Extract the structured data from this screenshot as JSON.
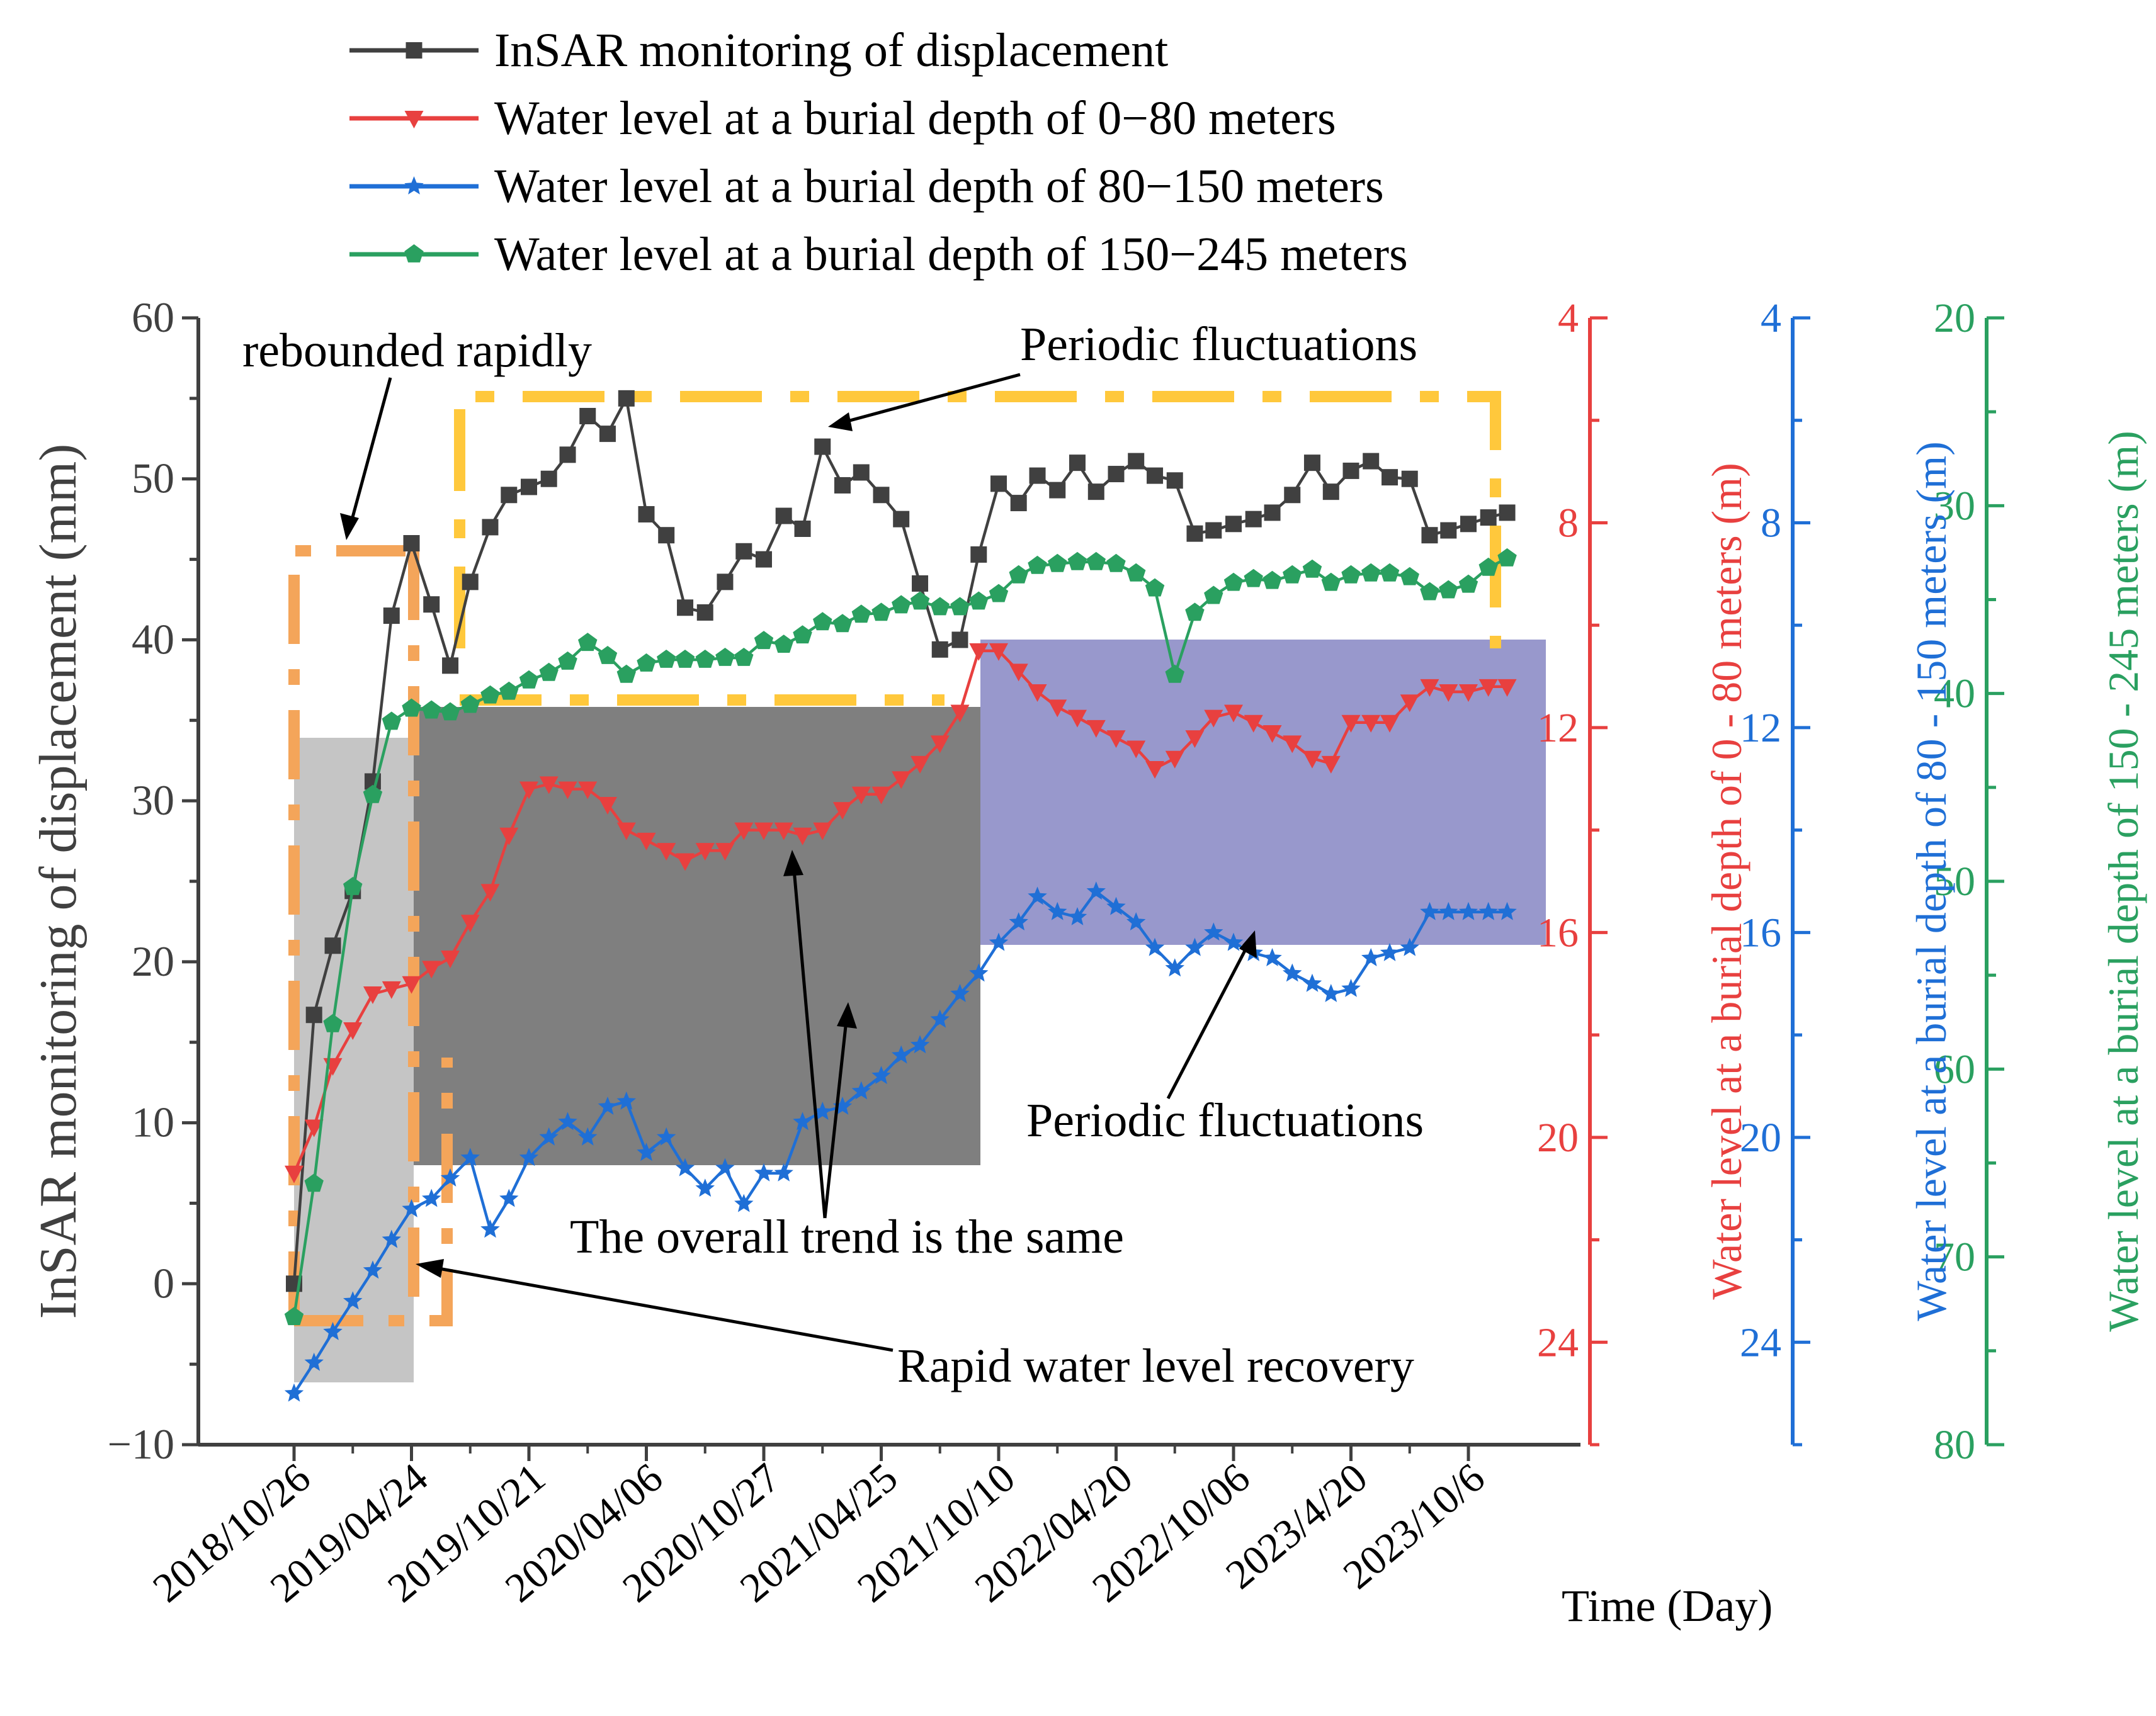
{
  "chart_data": {
    "type": "line",
    "xlabel": "Time (Day)",
    "x_ticks": [
      "2018/10/26",
      "2019/04/24",
      "2019/10/21",
      "2020/04/06",
      "2020/10/27",
      "2021/04/25",
      "2021/10/10",
      "2022/04/20",
      "2022/10/06",
      "2023/4/20",
      "2023/10/6"
    ],
    "x_range": [
      -0.4,
      11.4
    ],
    "axes": {
      "left": {
        "label": "InSAR monitoring of displacement (mm)",
        "range": [
          -10,
          60
        ],
        "ticks": [
          "−10",
          "0",
          "10",
          "20",
          "30",
          "40",
          "50",
          "60"
        ],
        "color": "#404040"
      },
      "right1": {
        "label": "Water level at a burial depth of 0 - 80 meters (m)",
        "range": [
          4,
          26
        ],
        "inverted": true,
        "ticks": [
          "4",
          "8",
          "12",
          "16",
          "20",
          "24"
        ],
        "color": "#E8403F"
      },
      "right2": {
        "label": "Water level at a burial depth of 80 - 150 meters (m)",
        "range": [
          4,
          26
        ],
        "inverted": true,
        "ticks": [
          "4",
          "8",
          "12",
          "16",
          "20",
          "24"
        ],
        "color": "#1F6FD6"
      },
      "right3": {
        "label": "Water level at a burial depth of 150 - 245 meters (m)",
        "range": [
          20,
          80
        ],
        "inverted": true,
        "ticks": [
          "20",
          "30",
          "40",
          "50",
          "60",
          "70",
          "80"
        ],
        "color": "#2AA060"
      }
    },
    "legend": {
      "placement": "top",
      "entries": [
        "InSAR monitoring of displacement",
        "Water level at a burial depth of 0−80 meters",
        "Water level at a burial depth of 80−150 meters",
        "Water level at a burial depth of 150−245 meters"
      ]
    },
    "series": [
      {
        "name": "InSAR monitoring of displacement",
        "axis": "left",
        "color": "#404040",
        "marker": "square",
        "x": [
          0,
          0.17,
          0.33,
          0.5,
          0.67,
          0.83,
          1.0,
          1.17,
          1.33,
          1.5,
          1.67,
          1.83,
          2.0,
          2.17,
          2.33,
          2.5,
          2.67,
          2.83,
          3.0,
          3.17,
          3.33,
          3.5,
          3.67,
          3.83,
          4.0,
          4.17,
          4.33,
          4.5,
          4.67,
          4.83,
          5.0,
          5.17,
          5.33,
          5.5,
          5.67,
          5.83,
          6.0,
          6.17,
          6.33,
          6.5,
          6.67,
          6.83,
          7.0,
          7.17,
          7.33,
          7.5,
          7.67,
          7.83,
          8.0,
          8.17,
          8.33,
          8.5,
          8.67,
          8.83,
          9.0,
          9.17,
          9.33,
          9.5,
          9.67,
          9.83,
          10.0,
          10.17,
          10.33
        ],
        "y": [
          0,
          16.7,
          21,
          24.4,
          31.2,
          41.5,
          46,
          42.2,
          38.4,
          43.6,
          47,
          49,
          49.5,
          50,
          51.5,
          53.9,
          52.8,
          55,
          47.8,
          46.5,
          42,
          41.7,
          43.6,
          45.5,
          45,
          47.7,
          46.9,
          52,
          49.6,
          50.4,
          49,
          47.5,
          43.5,
          39.4,
          40,
          45.3,
          49.7,
          48.5,
          50.2,
          49.3,
          51,
          49.2,
          50.3,
          51.1,
          50.2,
          49.9,
          46.6,
          46.8,
          47.2,
          47.5,
          47.9,
          49,
          51,
          49.2,
          50.5,
          51.1,
          50.1,
          50,
          46.5,
          46.8,
          47.2,
          47.6,
          47.9
        ]
      },
      {
        "name": "Water level at a burial depth of 0−80 meters",
        "axis": "right1",
        "color": "#E8403F",
        "marker": "triangle-down",
        "x": [
          0,
          0.17,
          0.33,
          0.5,
          0.67,
          0.83,
          1.0,
          1.17,
          1.33,
          1.5,
          1.67,
          1.83,
          2.0,
          2.17,
          2.33,
          2.5,
          2.67,
          2.83,
          3.0,
          3.17,
          3.33,
          3.5,
          3.67,
          3.83,
          4.0,
          4.17,
          4.33,
          4.5,
          4.67,
          4.83,
          5.0,
          5.17,
          5.33,
          5.5,
          5.67,
          5.83,
          6.0,
          6.17,
          6.33,
          6.5,
          6.67,
          6.83,
          7.0,
          7.17,
          7.33,
          7.5,
          7.67,
          7.83,
          8.0,
          8.17,
          8.33,
          8.5,
          8.67,
          8.83,
          9.0,
          9.17,
          9.33,
          9.5,
          9.67,
          9.83,
          10.0,
          10.17,
          10.33
        ],
        "y": [
          20.7,
          19.8,
          18.6,
          17.9,
          17.2,
          17.1,
          17.0,
          16.7,
          16.5,
          15.8,
          15.2,
          14.1,
          13.2,
          13.1,
          13.2,
          13.2,
          13.5,
          14.0,
          14.2,
          14.4,
          14.6,
          14.4,
          14.4,
          14.0,
          14.0,
          14.0,
          14.1,
          14.0,
          13.6,
          13.3,
          13.3,
          13.0,
          12.7,
          12.3,
          11.7,
          10.5,
          10.5,
          10.9,
          11.3,
          11.6,
          11.8,
          12.0,
          12.2,
          12.4,
          12.8,
          12.6,
          12.2,
          11.8,
          11.7,
          11.9,
          12.1,
          12.3,
          12.6,
          12.7,
          11.9,
          11.9,
          11.9,
          11.5,
          11.2,
          11.3,
          11.3,
          11.2,
          11.2
        ]
      },
      {
        "name": "Water level at a burial depth of 80−150 meters",
        "axis": "right2",
        "color": "#1F6FD6",
        "marker": "star",
        "x": [
          0,
          0.17,
          0.33,
          0.5,
          0.67,
          0.83,
          1.0,
          1.17,
          1.33,
          1.5,
          1.67,
          1.83,
          2.0,
          2.17,
          2.33,
          2.5,
          2.67,
          2.83,
          3.0,
          3.17,
          3.33,
          3.5,
          3.67,
          3.83,
          4.0,
          4.17,
          4.33,
          4.5,
          4.67,
          4.83,
          5.0,
          5.17,
          5.33,
          5.5,
          5.67,
          5.83,
          6.0,
          6.17,
          6.33,
          6.5,
          6.67,
          6.83,
          7.0,
          7.17,
          7.33,
          7.5,
          7.67,
          7.83,
          8.0,
          8.17,
          8.33,
          8.5,
          8.67,
          8.83,
          9.0,
          9.17,
          9.33,
          9.5,
          9.67,
          9.83,
          10.0,
          10.17,
          10.33
        ],
        "y": [
          25.0,
          24.4,
          23.8,
          23.2,
          22.6,
          22.0,
          21.4,
          21.2,
          20.8,
          20.4,
          21.8,
          21.2,
          20.4,
          20.0,
          19.7,
          20.0,
          19.4,
          19.3,
          20.3,
          20.0,
          20.6,
          21.0,
          20.6,
          21.3,
          20.7,
          20.7,
          19.7,
          19.5,
          19.4,
          19.1,
          18.8,
          18.4,
          18.2,
          17.7,
          17.2,
          16.8,
          16.2,
          15.8,
          15.3,
          15.6,
          15.7,
          15.2,
          15.5,
          15.8,
          16.3,
          16.7,
          16.3,
          16.0,
          16.2,
          16.4,
          16.5,
          16.8,
          17.0,
          17.2,
          17.1,
          16.5,
          16.4,
          16.3,
          15.6,
          15.6,
          15.6,
          15.6,
          15.6
        ]
      },
      {
        "name": "Water level at a burial depth of 150−245 meters",
        "axis": "right3",
        "color": "#2AA060",
        "marker": "pentagon",
        "x": [
          0,
          0.17,
          0.33,
          0.5,
          0.67,
          0.83,
          1.0,
          1.17,
          1.33,
          1.5,
          1.67,
          1.83,
          2.0,
          2.17,
          2.33,
          2.5,
          2.67,
          2.83,
          3.0,
          3.17,
          3.33,
          3.5,
          3.67,
          3.83,
          4.0,
          4.17,
          4.33,
          4.5,
          4.67,
          4.83,
          5.0,
          5.17,
          5.33,
          5.5,
          5.67,
          5.83,
          6.0,
          6.17,
          6.33,
          6.5,
          6.67,
          6.83,
          7.0,
          7.17,
          7.33,
          7.5,
          7.67,
          7.83,
          8.0,
          8.17,
          8.33,
          8.5,
          8.67,
          8.83,
          9.0,
          9.17,
          9.33,
          9.5,
          9.67,
          9.83,
          10.0,
          10.17,
          10.33
        ],
        "y": [
          73.2,
          66.1,
          57.6,
          50.3,
          45.4,
          41.5,
          40.8,
          40.9,
          41.0,
          40.6,
          40.1,
          39.9,
          39.3,
          38.9,
          38.3,
          37.3,
          38.0,
          39.0,
          38.4,
          38.2,
          38.2,
          38.2,
          38.1,
          38.1,
          37.2,
          37.4,
          36.9,
          36.2,
          36.3,
          35.8,
          35.7,
          35.3,
          35.1,
          35.4,
          35.4,
          35.1,
          34.7,
          33.7,
          33.2,
          33.1,
          33.0,
          33.0,
          33.1,
          33.6,
          34.4,
          39.0,
          35.7,
          34.8,
          34.1,
          33.9,
          34.0,
          33.7,
          33.4,
          34.1,
          33.7,
          33.6,
          33.6,
          33.8,
          34.6,
          34.5,
          34.2,
          33.3,
          32.8
        ]
      }
    ],
    "annotations": [
      "rebounded rapidly",
      "Periodic fluctuations",
      "Periodic fluctuations",
      "The overall trend is the same",
      "Rapid water level recovery"
    ]
  }
}
